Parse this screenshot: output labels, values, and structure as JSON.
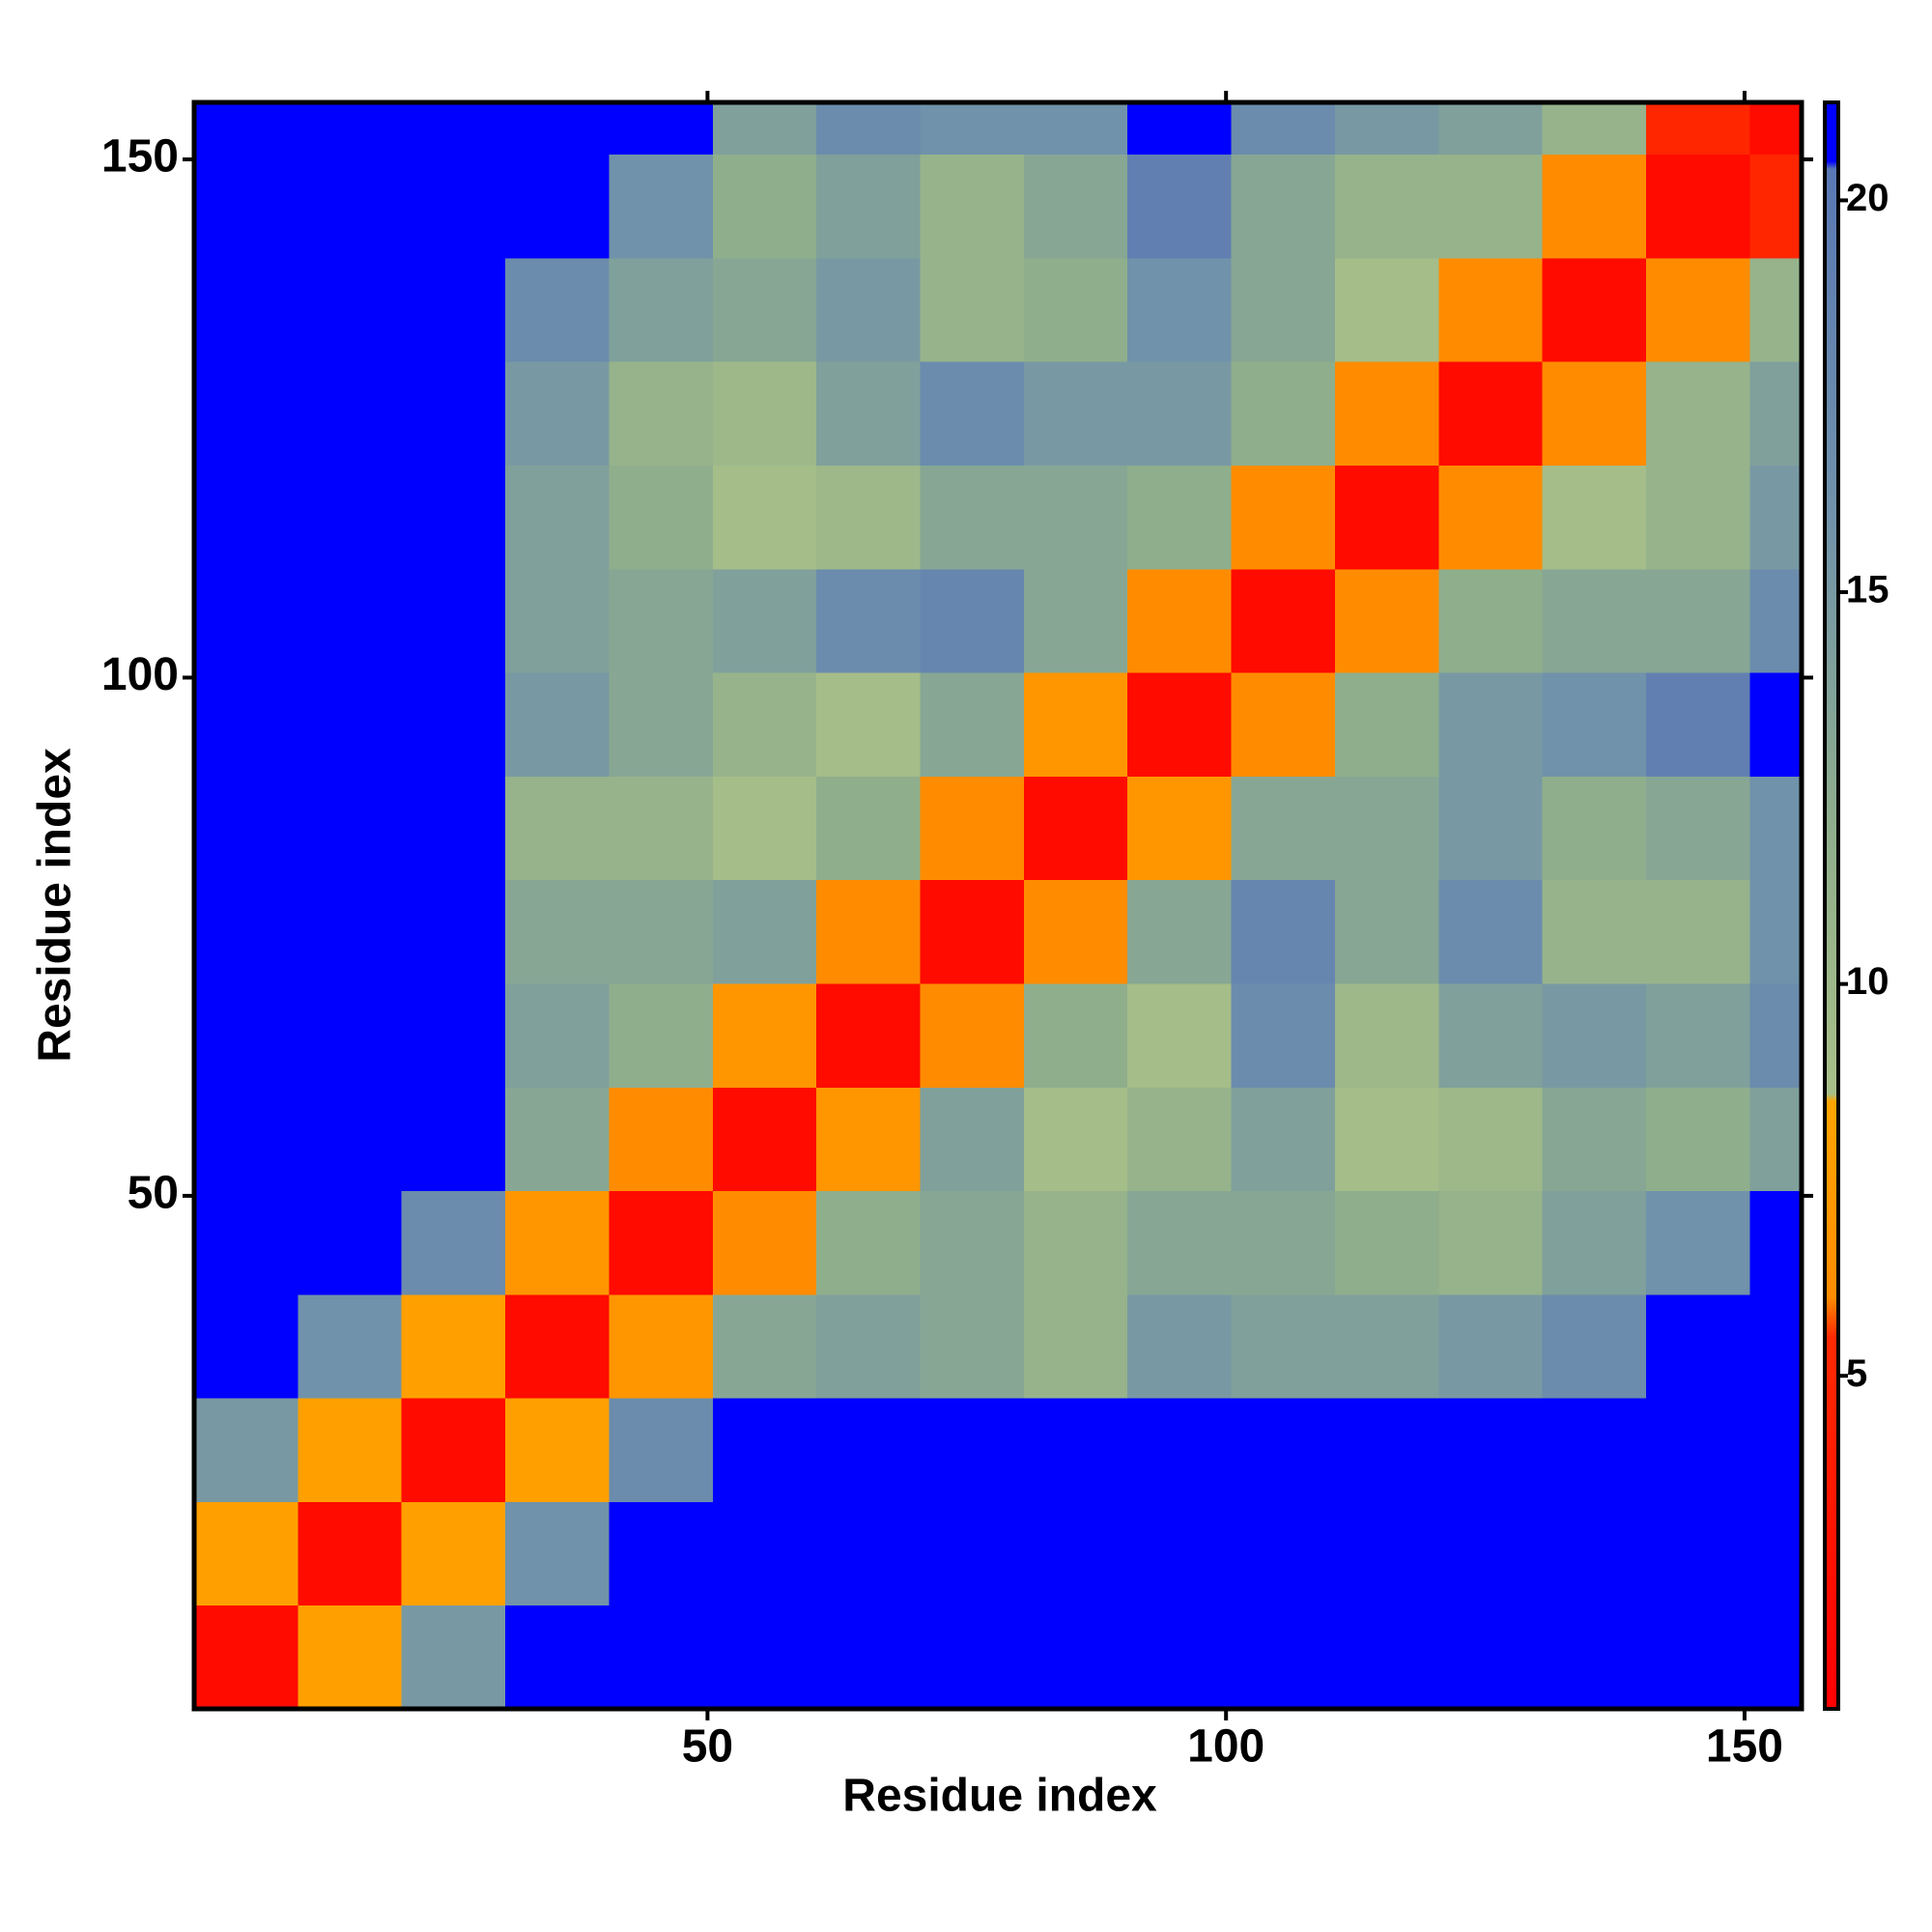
{
  "chart_data": {
    "type": "heatmap",
    "xlabel": "Residue index",
    "ylabel": "Residue index",
    "x_bins": [
      0.5,
      10.5,
      20.5,
      30.5,
      40.5,
      50.5,
      60.5,
      70.5,
      80.5,
      90.5,
      100.5,
      110.5,
      120.5,
      130.5,
      140.5,
      150.5,
      155.5
    ],
    "y_bins": [
      0.5,
      10.5,
      20.5,
      30.5,
      40.5,
      50.5,
      60.5,
      70.5,
      80.5,
      90.5,
      100.5,
      110.5,
      120.5,
      130.5,
      140.5,
      150.5,
      155.5
    ],
    "z": [
      [
        2,
        8,
        15,
        21,
        21,
        21,
        21,
        21,
        21,
        21,
        21,
        21,
        21,
        21,
        21,
        21
      ],
      [
        8,
        2,
        8,
        16,
        21,
        21,
        21,
        21,
        21,
        21,
        21,
        21,
        21,
        21,
        21,
        21
      ],
      [
        15,
        8,
        2,
        8,
        17,
        21,
        21,
        21,
        21,
        21,
        21,
        21,
        21,
        21,
        21,
        21
      ],
      [
        21,
        16,
        8,
        2,
        7,
        13,
        14,
        13,
        11,
        15,
        14,
        14,
        15,
        17,
        21,
        21
      ],
      [
        21,
        21,
        17,
        7,
        2,
        6,
        12,
        13,
        11,
        13,
        13,
        12,
        11,
        14,
        16,
        21
      ],
      [
        21,
        21,
        21,
        13,
        6,
        2,
        7,
        14,
        9,
        11,
        14,
        9,
        10,
        13,
        12,
        14
      ],
      [
        21,
        21,
        21,
        14,
        12,
        7,
        2,
        6,
        12,
        9,
        17,
        10,
        14,
        15,
        14,
        17
      ],
      [
        21,
        21,
        21,
        13,
        13,
        14,
        6,
        2,
        6,
        13,
        18,
        13,
        17,
        11,
        11,
        16
      ],
      [
        21,
        21,
        21,
        11,
        11,
        9,
        12,
        6,
        2,
        7,
        13,
        13,
        15,
        12,
        13,
        16
      ],
      [
        21,
        21,
        21,
        15,
        13,
        11,
        9,
        13,
        7,
        2,
        6,
        12,
        15,
        16,
        19,
        21
      ],
      [
        21,
        21,
        21,
        14,
        13,
        14,
        17,
        18,
        13,
        6,
        2,
        6,
        12,
        13,
        13,
        17
      ],
      [
        21,
        21,
        21,
        14,
        12,
        9,
        10,
        13,
        13,
        12,
        6,
        2,
        6,
        9,
        11,
        15
      ],
      [
        21,
        21,
        21,
        15,
        11,
        10,
        14,
        17,
        15,
        15,
        12,
        6,
        2,
        6,
        11,
        14
      ],
      [
        21,
        21,
        21,
        17,
        14,
        13,
        15,
        11,
        12,
        16,
        13,
        9,
        6,
        2,
        6,
        11
      ],
      [
        21,
        21,
        21,
        21,
        16,
        12,
        14,
        11,
        13,
        19,
        13,
        11,
        11,
        6,
        2,
        5
      ],
      [
        21,
        21,
        21,
        21,
        21,
        14,
        17,
        16,
        16,
        21,
        17,
        15,
        14,
        11,
        5,
        2
      ]
    ],
    "xlim": [
      0.5,
      155.5
    ],
    "ylim": [
      0.5,
      155.5
    ],
    "xticks": [
      50,
      100,
      150
    ],
    "yticks": [
      50,
      100,
      150
    ],
    "zlim": [
      0.75,
      21.25
    ],
    "zticks": [
      5,
      10,
      15,
      20
    ],
    "colorscale": [
      {
        "value": 0.75,
        "color": "#ff0000"
      },
      {
        "value": 5.5,
        "color": "#ff2a00"
      },
      {
        "value": 6,
        "color": "#ff8c00"
      },
      {
        "value": 8.5,
        "color": "#ffa500"
      },
      {
        "value": 8.6,
        "color": "#a8bf88"
      },
      {
        "value": 12,
        "color": "#8fae8c"
      },
      {
        "value": 16,
        "color": "#7092aa"
      },
      {
        "value": 20.4,
        "color": "#5a78b4"
      },
      {
        "value": 20.5,
        "color": "#0000ff"
      },
      {
        "value": 21.25,
        "color": "#0000ff"
      }
    ]
  }
}
